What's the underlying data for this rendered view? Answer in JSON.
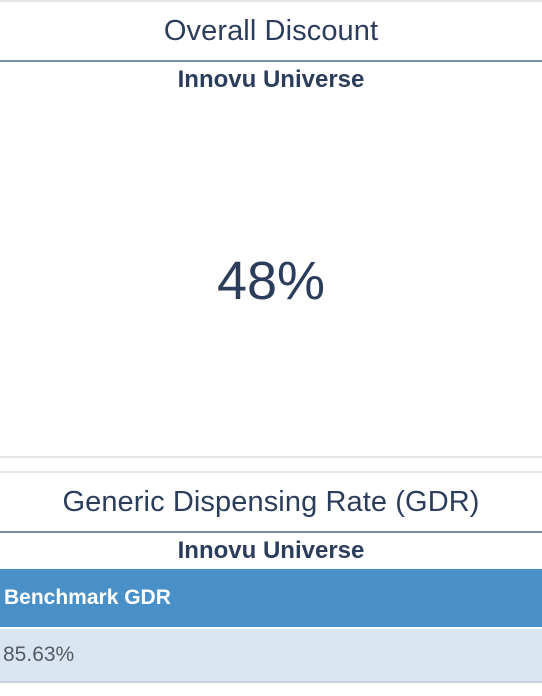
{
  "overall_discount": {
    "title": "Overall Discount",
    "subtitle": "Innovu Universe",
    "value": "48%"
  },
  "gdr": {
    "title": "Generic Dispensing Rate (GDR)",
    "subtitle": "Innovu Universe",
    "table": {
      "header": "Benchmark GDR",
      "rows": [
        "85.63%"
      ]
    }
  },
  "colors": {
    "text": "#2c3d5c",
    "table_header_bg": "#4a90c8",
    "table_row_bg": "#d9e6f2"
  }
}
